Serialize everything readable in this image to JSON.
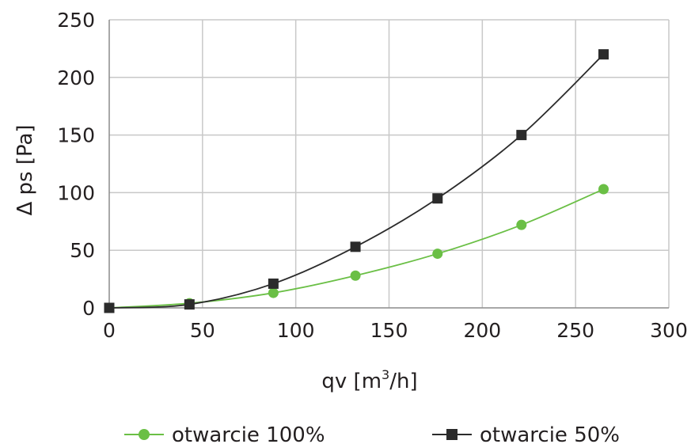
{
  "chart_data": {
    "type": "line",
    "xlabel": "qv [m³/h]",
    "xlabel_parts": {
      "pre": "qv [m",
      "sup": "3",
      "post": "/h]"
    },
    "ylabel": "Δ ps [Pa]",
    "xlim": [
      0,
      300
    ],
    "ylim": [
      0,
      250
    ],
    "xticks": [
      0,
      50,
      100,
      150,
      200,
      250,
      300
    ],
    "yticks": [
      0,
      50,
      100,
      150,
      200,
      250
    ],
    "grid": true,
    "legend_position": "bottom",
    "smooth": true,
    "series": [
      {
        "name": "otwarcie 100%",
        "marker": "circle",
        "color": "#6abf45",
        "points": [
          {
            "x": 0,
            "y": 0
          },
          {
            "x": 43,
            "y": 4
          },
          {
            "x": 88,
            "y": 13
          },
          {
            "x": 132,
            "y": 28
          },
          {
            "x": 176,
            "y": 47
          },
          {
            "x": 221,
            "y": 72
          },
          {
            "x": 265,
            "y": 103
          }
        ]
      },
      {
        "name": "otwarcie 50%",
        "marker": "square",
        "color": "#2b2b2b",
        "points": [
          {
            "x": 0,
            "y": 0
          },
          {
            "x": 43,
            "y": 3
          },
          {
            "x": 88,
            "y": 21
          },
          {
            "x": 132,
            "y": 53
          },
          {
            "x": 176,
            "y": 95
          },
          {
            "x": 221,
            "y": 150
          },
          {
            "x": 265,
            "y": 220
          }
        ]
      }
    ]
  },
  "colors": {
    "grid": "#c8c8c8",
    "axis": "#8c8c8c",
    "text": "#231f20"
  }
}
